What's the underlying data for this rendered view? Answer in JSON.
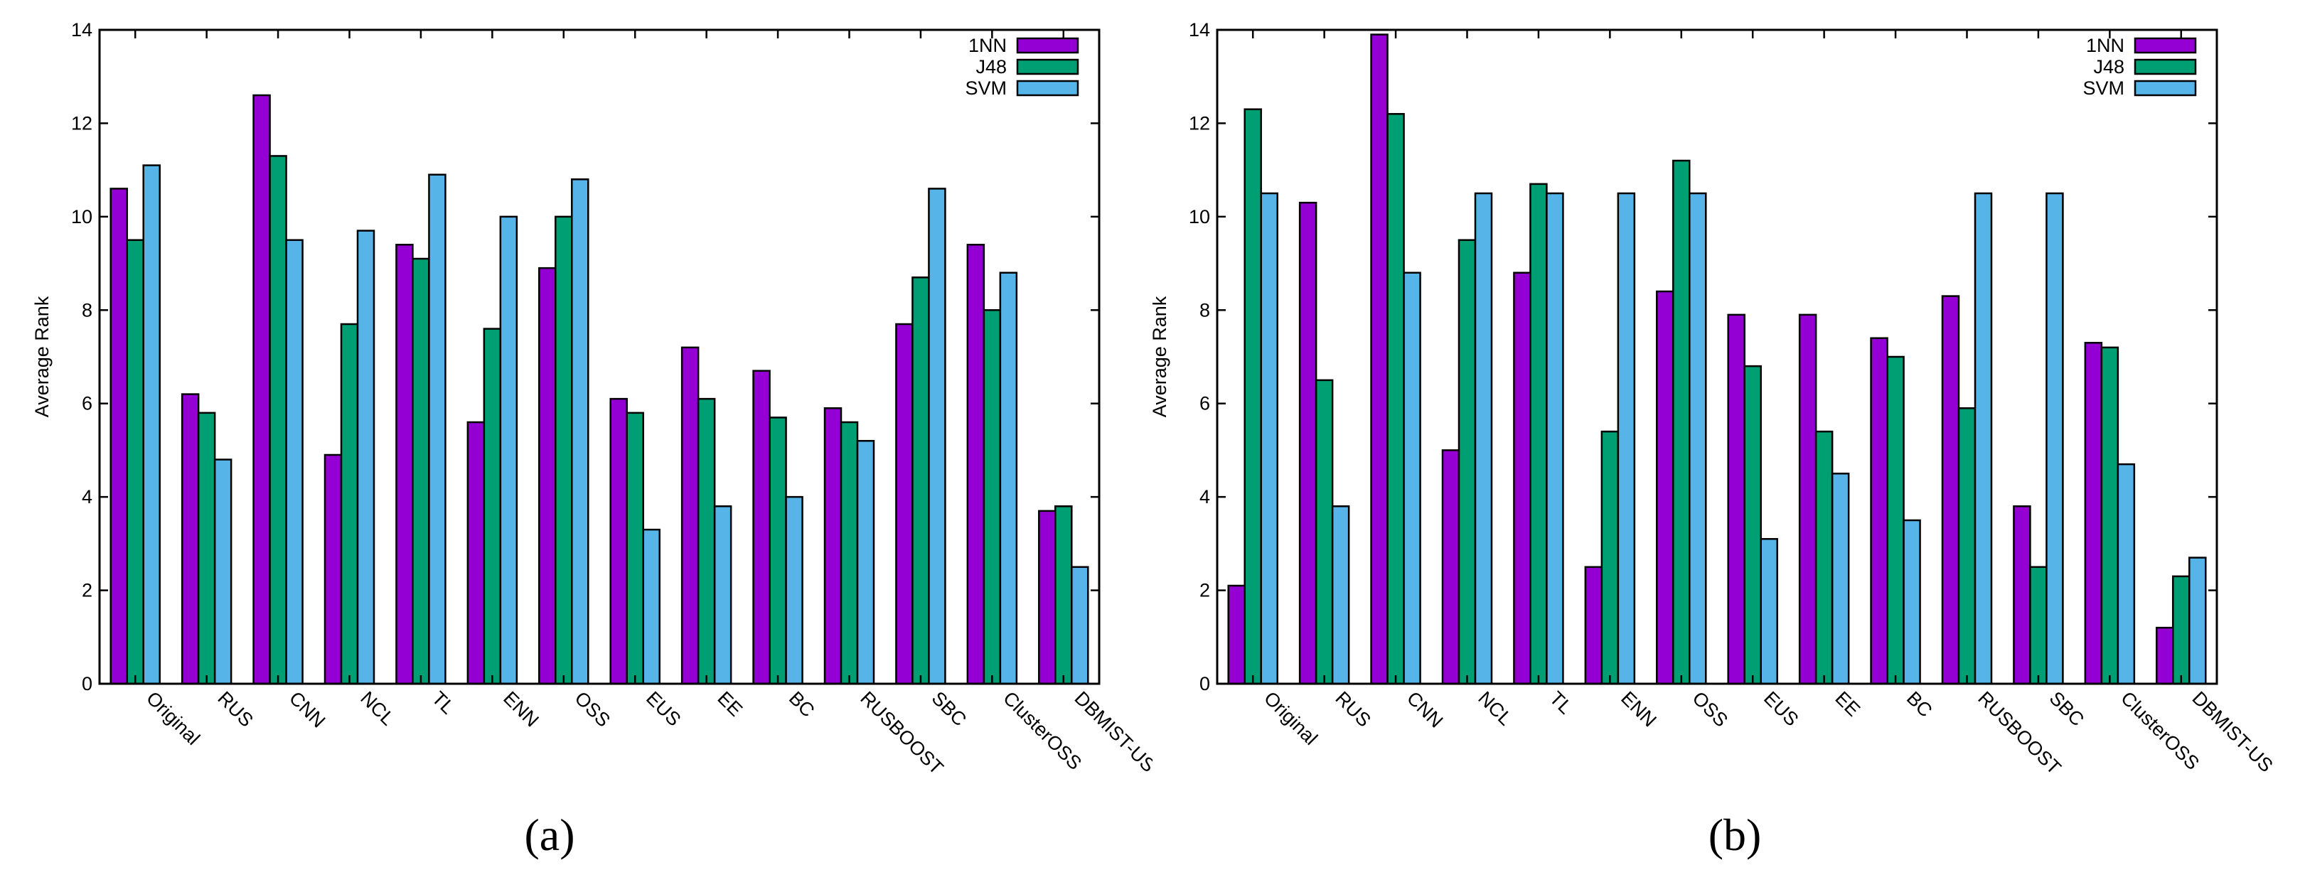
{
  "labels": {
    "panel_a": "(a)",
    "panel_b": "(b)"
  },
  "colors": {
    "1NN": "#9400d3",
    "J48": "#009e73",
    "SVM": "#56b4e9"
  },
  "chart_data": [
    {
      "type": "bar",
      "categories": [
        "Original",
        "RUS",
        "CNN",
        "NCL",
        "TL",
        "ENN",
        "OSS",
        "EUS",
        "EE",
        "BC",
        "RUSBOOST",
        "SBC",
        "ClusterOSS",
        "DBMIST-US"
      ],
      "series": [
        {
          "name": "1NN",
          "values": [
            10.6,
            6.2,
            12.6,
            4.9,
            9.4,
            5.6,
            8.9,
            6.1,
            7.2,
            6.7,
            5.9,
            7.7,
            9.4,
            3.7
          ]
        },
        {
          "name": "J48",
          "values": [
            9.5,
            5.8,
            11.3,
            7.7,
            9.1,
            7.6,
            10.0,
            5.8,
            6.1,
            5.7,
            5.6,
            8.7,
            8.0,
            3.8
          ]
        },
        {
          "name": "SVM",
          "values": [
            11.1,
            4.8,
            9.5,
            9.7,
            10.9,
            10.0,
            10.8,
            3.3,
            3.8,
            4.0,
            5.2,
            10.6,
            8.8,
            2.5
          ]
        }
      ],
      "ylabel": "Average Rank",
      "xlabel": "",
      "ylim": [
        0,
        14
      ],
      "yticks": [
        0,
        2,
        4,
        6,
        8,
        10,
        12,
        14
      ],
      "legend": "top-right",
      "grid": false
    },
    {
      "type": "bar",
      "categories": [
        "Original",
        "RUS",
        "CNN",
        "NCL",
        "TL",
        "ENN",
        "OSS",
        "EUS",
        "EE",
        "BC",
        "RUSBOOST",
        "SBC",
        "ClusterOSS",
        "DBMIST-US"
      ],
      "series": [
        {
          "name": "1NN",
          "values": [
            2.1,
            10.3,
            13.9,
            5.0,
            8.8,
            2.5,
            8.4,
            7.9,
            7.9,
            7.4,
            8.3,
            3.8,
            7.3,
            1.2
          ]
        },
        {
          "name": "J48",
          "values": [
            12.3,
            6.5,
            12.2,
            9.5,
            10.7,
            5.4,
            11.2,
            6.8,
            5.4,
            7.0,
            5.9,
            2.5,
            7.2,
            2.3
          ]
        },
        {
          "name": "SVM",
          "values": [
            10.5,
            3.8,
            8.8,
            10.5,
            10.5,
            10.5,
            10.5,
            3.1,
            4.5,
            3.5,
            10.5,
            10.5,
            4.7,
            2.7
          ]
        }
      ],
      "ylabel": "Average Rank",
      "xlabel": "",
      "ylim": [
        0,
        14
      ],
      "yticks": [
        0,
        2,
        4,
        6,
        8,
        10,
        12,
        14
      ],
      "legend": "top-right",
      "grid": false
    }
  ]
}
